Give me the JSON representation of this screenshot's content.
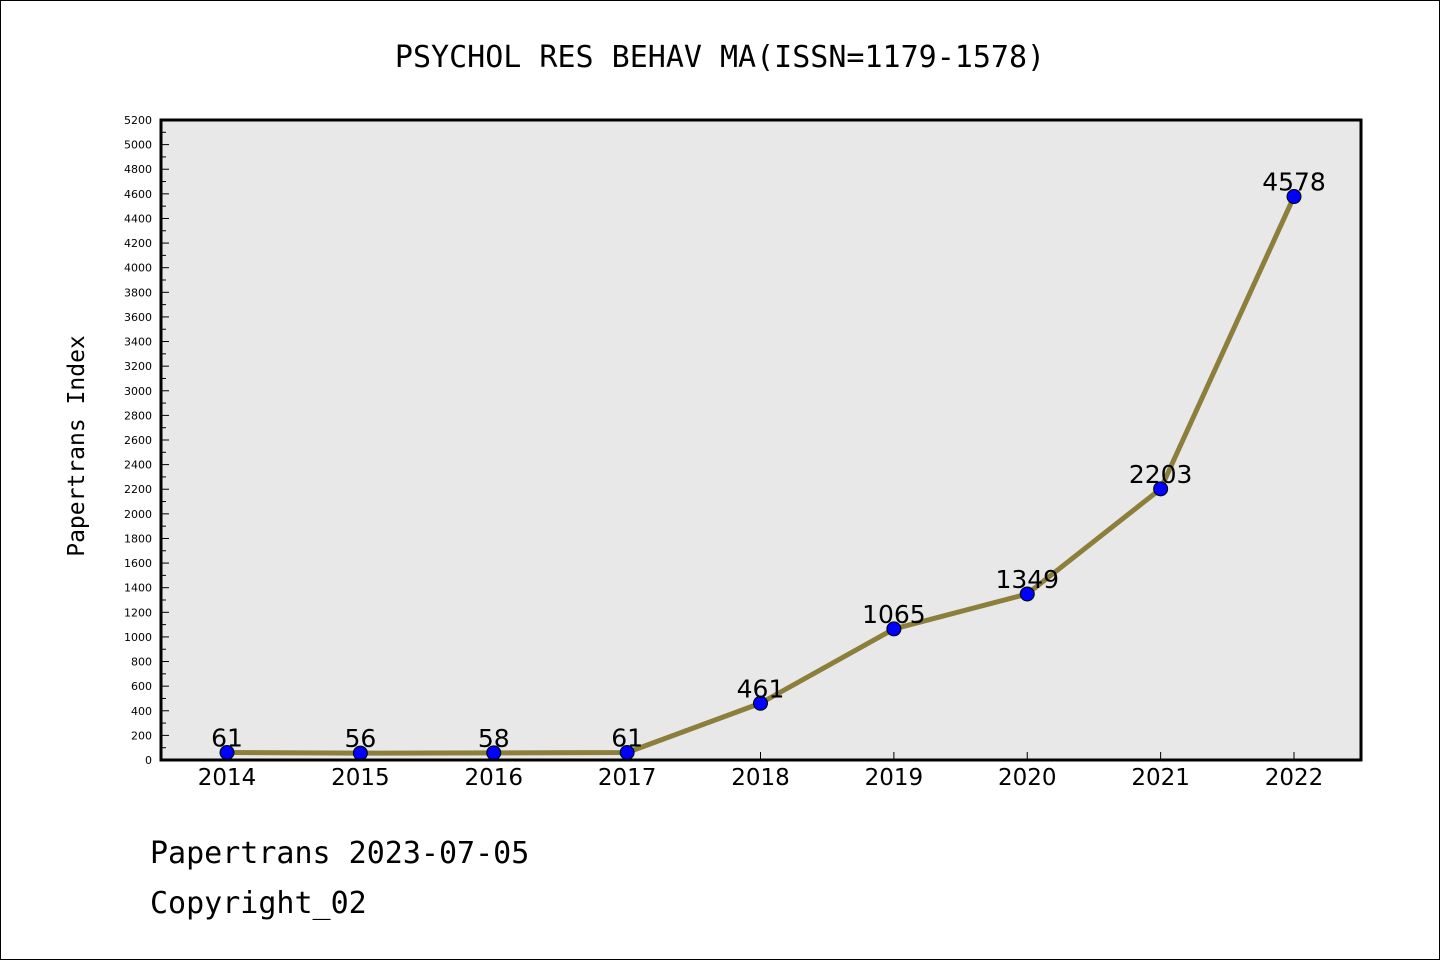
{
  "chart_data": {
    "type": "line",
    "title": "PSYCHOL RES BEHAV MA(ISSN=1179-1578)",
    "ylabel": "Papertrans Index",
    "xlabel": "",
    "categories": [
      "2014",
      "2015",
      "2016",
      "2017",
      "2018",
      "2019",
      "2020",
      "2021",
      "2022"
    ],
    "series": [
      {
        "values": [
          61,
          56,
          58,
          61,
          461,
          1065,
          1349,
          2203,
          4578
        ]
      }
    ],
    "data_labels": [
      "61",
      "56",
      "58",
      "61",
      "461",
      "1065",
      "1349",
      "2203",
      "4578"
    ],
    "ylim": [
      0,
      5200
    ],
    "ytick_step": 200,
    "grid": false,
    "legend": "none",
    "colors": {
      "line": "#8c7f3c",
      "marker": "#0000ff",
      "plot_background": "#e8e8e8"
    }
  },
  "footer": {
    "date_line": "Papertrans 2023-07-05",
    "copyright_line": "Copyright_02"
  }
}
